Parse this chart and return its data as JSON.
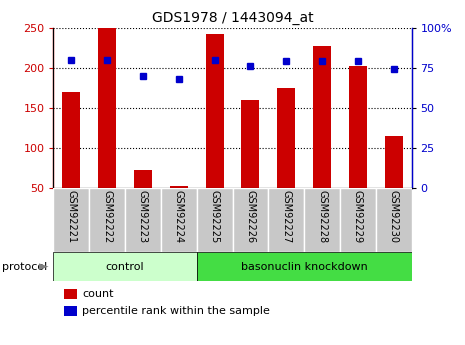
{
  "title": "GDS1978 / 1443094_at",
  "samples": [
    "GSM92221",
    "GSM92222",
    "GSM92223",
    "GSM92224",
    "GSM92225",
    "GSM92226",
    "GSM92227",
    "GSM92228",
    "GSM92229",
    "GSM92230"
  ],
  "counts": [
    170,
    250,
    72,
    53,
    242,
    160,
    175,
    227,
    202,
    115
  ],
  "percentiles": [
    80,
    80,
    70,
    68,
    80,
    76,
    79,
    79,
    79,
    74
  ],
  "groups": [
    {
      "label": "control",
      "start": 0,
      "end": 3
    },
    {
      "label": "basonuclin knockdown",
      "start": 4,
      "end": 9
    }
  ],
  "ylim_left": [
    50,
    250
  ],
  "ylim_right": [
    0,
    100
  ],
  "yticks_left": [
    50,
    100,
    150,
    200,
    250
  ],
  "yticks_right": [
    0,
    25,
    50,
    75,
    100
  ],
  "bar_color": "#cc0000",
  "dot_color": "#0000cc",
  "bg_color": "#ffffff",
  "tick_area_bg": "#c8c8c8",
  "control_bg": "#ccffcc",
  "knockdown_bg": "#44dd44",
  "bar_width": 0.5,
  "protocol_label": "protocol",
  "legend_count_label": "count",
  "legend_pct_label": "percentile rank within the sample",
  "left_label_color": "#cc0000",
  "right_label_color": "#0000cc"
}
